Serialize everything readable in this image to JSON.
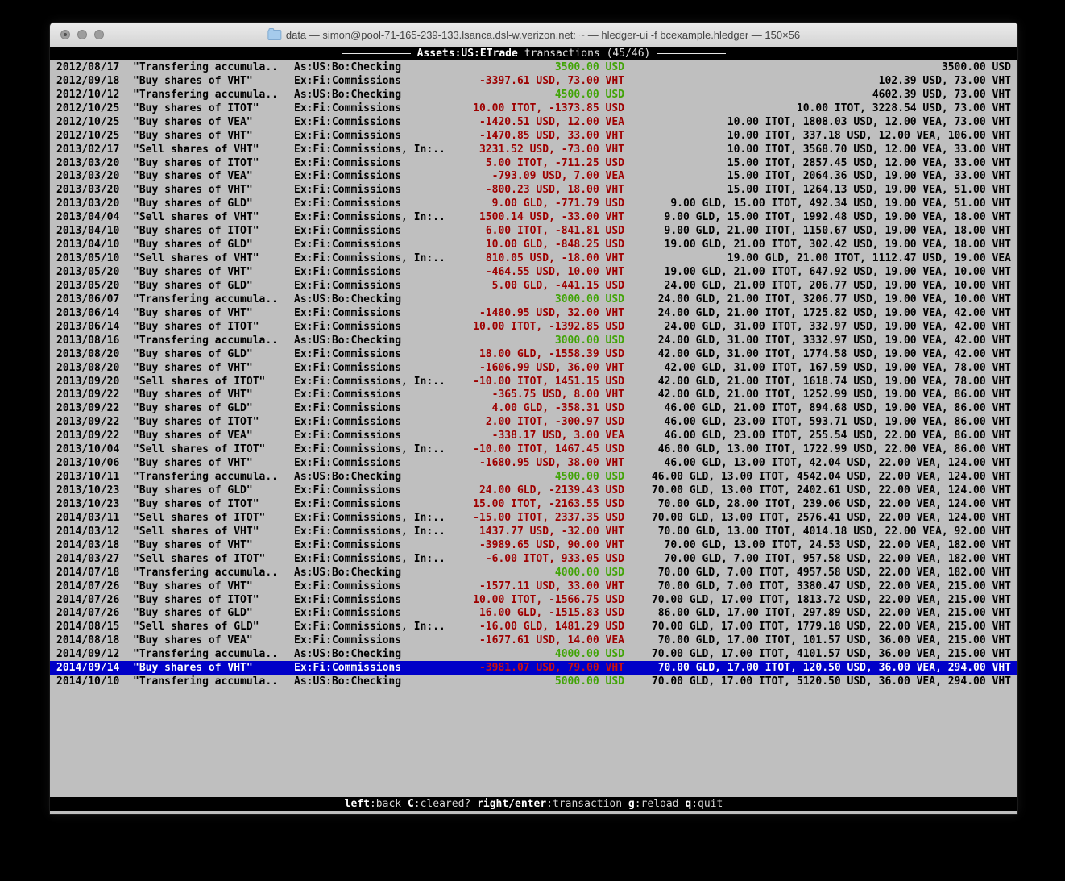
{
  "window": {
    "title": "data — simon@pool-71-165-239-133.lsanca.dsl-w.verizon.net: ~ — hledger-ui -f bcexample.hledger — 150×56"
  },
  "screen_header": {
    "account": "Assets:US:ETrade",
    "rest": "transactions (45/46)"
  },
  "footer": {
    "keys": [
      {
        "key": "left",
        "desc": "back"
      },
      {
        "key": "C",
        "desc": "cleared?"
      },
      {
        "key": "right/enter",
        "desc": "transaction"
      },
      {
        "key": "g",
        "desc": "reload"
      },
      {
        "key": "q",
        "desc": "quit"
      }
    ]
  },
  "colors": {
    "terminal_bg": "#bfbfbf",
    "selection_bg": "#0000c8",
    "negative_amount": "#9d0000",
    "positive_amount": "#42a408",
    "bar_bg": "#000000"
  },
  "register": {
    "selected_index": 44,
    "rows": [
      {
        "date": "2012/08/17",
        "description": "\"Transfering accumula..",
        "account": "As:US:Bo:Checking",
        "change": "3500.00 USD",
        "change_negative": false,
        "balance": "3500.00 USD"
      },
      {
        "date": "2012/09/18",
        "description": "\"Buy shares of VHT\"",
        "account": "Ex:Fi:Commissions",
        "change": "-3397.61 USD, 73.00 VHT",
        "change_negative": true,
        "balance": "102.39 USD, 73.00 VHT"
      },
      {
        "date": "2012/10/12",
        "description": "\"Transfering accumula..",
        "account": "As:US:Bo:Checking",
        "change": "4500.00 USD",
        "change_negative": false,
        "balance": "4602.39 USD, 73.00 VHT"
      },
      {
        "date": "2012/10/25",
        "description": "\"Buy shares of ITOT\"",
        "account": "Ex:Fi:Commissions",
        "change": "10.00 ITOT, -1373.85 USD",
        "change_negative": true,
        "balance": "10.00 ITOT, 3228.54 USD, 73.00 VHT"
      },
      {
        "date": "2012/10/25",
        "description": "\"Buy shares of VEA\"",
        "account": "Ex:Fi:Commissions",
        "change": "-1420.51 USD, 12.00 VEA",
        "change_negative": true,
        "balance": "10.00 ITOT, 1808.03 USD, 12.00 VEA, 73.00 VHT"
      },
      {
        "date": "2012/10/25",
        "description": "\"Buy shares of VHT\"",
        "account": "Ex:Fi:Commissions",
        "change": "-1470.85 USD, 33.00 VHT",
        "change_negative": true,
        "balance": "10.00 ITOT, 337.18 USD, 12.00 VEA, 106.00 VHT"
      },
      {
        "date": "2013/02/17",
        "description": "\"Sell shares of VHT\"",
        "account": "Ex:Fi:Commissions, In:..",
        "change": "3231.52 USD, -73.00 VHT",
        "change_negative": true,
        "balance": "10.00 ITOT, 3568.70 USD, 12.00 VEA, 33.00 VHT"
      },
      {
        "date": "2013/03/20",
        "description": "\"Buy shares of ITOT\"",
        "account": "Ex:Fi:Commissions",
        "change": "5.00 ITOT, -711.25 USD",
        "change_negative": true,
        "balance": "15.00 ITOT, 2857.45 USD, 12.00 VEA, 33.00 VHT"
      },
      {
        "date": "2013/03/20",
        "description": "\"Buy shares of VEA\"",
        "account": "Ex:Fi:Commissions",
        "change": "-793.09 USD, 7.00 VEA",
        "change_negative": true,
        "balance": "15.00 ITOT, 2064.36 USD, 19.00 VEA, 33.00 VHT"
      },
      {
        "date": "2013/03/20",
        "description": "\"Buy shares of VHT\"",
        "account": "Ex:Fi:Commissions",
        "change": "-800.23 USD, 18.00 VHT",
        "change_negative": true,
        "balance": "15.00 ITOT, 1264.13 USD, 19.00 VEA, 51.00 VHT"
      },
      {
        "date": "2013/03/20",
        "description": "\"Buy shares of GLD\"",
        "account": "Ex:Fi:Commissions",
        "change": "9.00 GLD, -771.79 USD",
        "change_negative": true,
        "balance": "9.00 GLD, 15.00 ITOT, 492.34 USD, 19.00 VEA, 51.00 VHT"
      },
      {
        "date": "2013/04/04",
        "description": "\"Sell shares of VHT\"",
        "account": "Ex:Fi:Commissions, In:..",
        "change": "1500.14 USD, -33.00 VHT",
        "change_negative": true,
        "balance": "9.00 GLD, 15.00 ITOT, 1992.48 USD, 19.00 VEA, 18.00 VHT"
      },
      {
        "date": "2013/04/10",
        "description": "\"Buy shares of ITOT\"",
        "account": "Ex:Fi:Commissions",
        "change": "6.00 ITOT, -841.81 USD",
        "change_negative": true,
        "balance": "9.00 GLD, 21.00 ITOT, 1150.67 USD, 19.00 VEA, 18.00 VHT"
      },
      {
        "date": "2013/04/10",
        "description": "\"Buy shares of GLD\"",
        "account": "Ex:Fi:Commissions",
        "change": "10.00 GLD, -848.25 USD",
        "change_negative": true,
        "balance": "19.00 GLD, 21.00 ITOT, 302.42 USD, 19.00 VEA, 18.00 VHT"
      },
      {
        "date": "2013/05/10",
        "description": "\"Sell shares of VHT\"",
        "account": "Ex:Fi:Commissions, In:..",
        "change": "810.05 USD, -18.00 VHT",
        "change_negative": true,
        "balance": "19.00 GLD, 21.00 ITOT, 1112.47 USD, 19.00 VEA"
      },
      {
        "date": "2013/05/20",
        "description": "\"Buy shares of VHT\"",
        "account": "Ex:Fi:Commissions",
        "change": "-464.55 USD, 10.00 VHT",
        "change_negative": true,
        "balance": "19.00 GLD, 21.00 ITOT, 647.92 USD, 19.00 VEA, 10.00 VHT"
      },
      {
        "date": "2013/05/20",
        "description": "\"Buy shares of GLD\"",
        "account": "Ex:Fi:Commissions",
        "change": "5.00 GLD, -441.15 USD",
        "change_negative": true,
        "balance": "24.00 GLD, 21.00 ITOT, 206.77 USD, 19.00 VEA, 10.00 VHT"
      },
      {
        "date": "2013/06/07",
        "description": "\"Transfering accumula..",
        "account": "As:US:Bo:Checking",
        "change": "3000.00 USD",
        "change_negative": false,
        "balance": "24.00 GLD, 21.00 ITOT, 3206.77 USD, 19.00 VEA, 10.00 VHT"
      },
      {
        "date": "2013/06/14",
        "description": "\"Buy shares of VHT\"",
        "account": "Ex:Fi:Commissions",
        "change": "-1480.95 USD, 32.00 VHT",
        "change_negative": true,
        "balance": "24.00 GLD, 21.00 ITOT, 1725.82 USD, 19.00 VEA, 42.00 VHT"
      },
      {
        "date": "2013/06/14",
        "description": "\"Buy shares of ITOT\"",
        "account": "Ex:Fi:Commissions",
        "change": "10.00 ITOT, -1392.85 USD",
        "change_negative": true,
        "balance": "24.00 GLD, 31.00 ITOT, 332.97 USD, 19.00 VEA, 42.00 VHT"
      },
      {
        "date": "2013/08/16",
        "description": "\"Transfering accumula..",
        "account": "As:US:Bo:Checking",
        "change": "3000.00 USD",
        "change_negative": false,
        "balance": "24.00 GLD, 31.00 ITOT, 3332.97 USD, 19.00 VEA, 42.00 VHT"
      },
      {
        "date": "2013/08/20",
        "description": "\"Buy shares of GLD\"",
        "account": "Ex:Fi:Commissions",
        "change": "18.00 GLD, -1558.39 USD",
        "change_negative": true,
        "balance": "42.00 GLD, 31.00 ITOT, 1774.58 USD, 19.00 VEA, 42.00 VHT"
      },
      {
        "date": "2013/08/20",
        "description": "\"Buy shares of VHT\"",
        "account": "Ex:Fi:Commissions",
        "change": "-1606.99 USD, 36.00 VHT",
        "change_negative": true,
        "balance": "42.00 GLD, 31.00 ITOT, 167.59 USD, 19.00 VEA, 78.00 VHT"
      },
      {
        "date": "2013/09/20",
        "description": "\"Sell shares of ITOT\"",
        "account": "Ex:Fi:Commissions, In:..",
        "change": "-10.00 ITOT, 1451.15 USD",
        "change_negative": true,
        "balance": "42.00 GLD, 21.00 ITOT, 1618.74 USD, 19.00 VEA, 78.00 VHT"
      },
      {
        "date": "2013/09/22",
        "description": "\"Buy shares of VHT\"",
        "account": "Ex:Fi:Commissions",
        "change": "-365.75 USD, 8.00 VHT",
        "change_negative": true,
        "balance": "42.00 GLD, 21.00 ITOT, 1252.99 USD, 19.00 VEA, 86.00 VHT"
      },
      {
        "date": "2013/09/22",
        "description": "\"Buy shares of GLD\"",
        "account": "Ex:Fi:Commissions",
        "change": "4.00 GLD, -358.31 USD",
        "change_negative": true,
        "balance": "46.00 GLD, 21.00 ITOT, 894.68 USD, 19.00 VEA, 86.00 VHT"
      },
      {
        "date": "2013/09/22",
        "description": "\"Buy shares of ITOT\"",
        "account": "Ex:Fi:Commissions",
        "change": "2.00 ITOT, -300.97 USD",
        "change_negative": true,
        "balance": "46.00 GLD, 23.00 ITOT, 593.71 USD, 19.00 VEA, 86.00 VHT"
      },
      {
        "date": "2013/09/22",
        "description": "\"Buy shares of VEA\"",
        "account": "Ex:Fi:Commissions",
        "change": "-338.17 USD, 3.00 VEA",
        "change_negative": true,
        "balance": "46.00 GLD, 23.00 ITOT, 255.54 USD, 22.00 VEA, 86.00 VHT"
      },
      {
        "date": "2013/10/04",
        "description": "\"Sell shares of ITOT\"",
        "account": "Ex:Fi:Commissions, In:..",
        "change": "-10.00 ITOT, 1467.45 USD",
        "change_negative": true,
        "balance": "46.00 GLD, 13.00 ITOT, 1722.99 USD, 22.00 VEA, 86.00 VHT"
      },
      {
        "date": "2013/10/06",
        "description": "\"Buy shares of VHT\"",
        "account": "Ex:Fi:Commissions",
        "change": "-1680.95 USD, 38.00 VHT",
        "change_negative": true,
        "balance": "46.00 GLD, 13.00 ITOT, 42.04 USD, 22.00 VEA, 124.00 VHT"
      },
      {
        "date": "2013/10/11",
        "description": "\"Transfering accumula..",
        "account": "As:US:Bo:Checking",
        "change": "4500.00 USD",
        "change_negative": false,
        "balance": "46.00 GLD, 13.00 ITOT, 4542.04 USD, 22.00 VEA, 124.00 VHT"
      },
      {
        "date": "2013/10/23",
        "description": "\"Buy shares of GLD\"",
        "account": "Ex:Fi:Commissions",
        "change": "24.00 GLD, -2139.43 USD",
        "change_negative": true,
        "balance": "70.00 GLD, 13.00 ITOT, 2402.61 USD, 22.00 VEA, 124.00 VHT"
      },
      {
        "date": "2013/10/23",
        "description": "\"Buy shares of ITOT\"",
        "account": "Ex:Fi:Commissions",
        "change": "15.00 ITOT, -2163.55 USD",
        "change_negative": true,
        "balance": "70.00 GLD, 28.00 ITOT, 239.06 USD, 22.00 VEA, 124.00 VHT"
      },
      {
        "date": "2014/03/11",
        "description": "\"Sell shares of ITOT\"",
        "account": "Ex:Fi:Commissions, In:..",
        "change": "-15.00 ITOT, 2337.35 USD",
        "change_negative": true,
        "balance": "70.00 GLD, 13.00 ITOT, 2576.41 USD, 22.00 VEA, 124.00 VHT"
      },
      {
        "date": "2014/03/12",
        "description": "\"Sell shares of VHT\"",
        "account": "Ex:Fi:Commissions, In:..",
        "change": "1437.77 USD, -32.00 VHT",
        "change_negative": true,
        "balance": "70.00 GLD, 13.00 ITOT, 4014.18 USD, 22.00 VEA, 92.00 VHT"
      },
      {
        "date": "2014/03/18",
        "description": "\"Buy shares of VHT\"",
        "account": "Ex:Fi:Commissions",
        "change": "-3989.65 USD, 90.00 VHT",
        "change_negative": true,
        "balance": "70.00 GLD, 13.00 ITOT, 24.53 USD, 22.00 VEA, 182.00 VHT"
      },
      {
        "date": "2014/03/27",
        "description": "\"Sell shares of ITOT\"",
        "account": "Ex:Fi:Commissions, In:..",
        "change": "-6.00 ITOT, 933.05 USD",
        "change_negative": true,
        "balance": "70.00 GLD, 7.00 ITOT, 957.58 USD, 22.00 VEA, 182.00 VHT"
      },
      {
        "date": "2014/07/18",
        "description": "\"Transfering accumula..",
        "account": "As:US:Bo:Checking",
        "change": "4000.00 USD",
        "change_negative": false,
        "balance": "70.00 GLD, 7.00 ITOT, 4957.58 USD, 22.00 VEA, 182.00 VHT"
      },
      {
        "date": "2014/07/26",
        "description": "\"Buy shares of VHT\"",
        "account": "Ex:Fi:Commissions",
        "change": "-1577.11 USD, 33.00 VHT",
        "change_negative": true,
        "balance": "70.00 GLD, 7.00 ITOT, 3380.47 USD, 22.00 VEA, 215.00 VHT"
      },
      {
        "date": "2014/07/26",
        "description": "\"Buy shares of ITOT\"",
        "account": "Ex:Fi:Commissions",
        "change": "10.00 ITOT, -1566.75 USD",
        "change_negative": true,
        "balance": "70.00 GLD, 17.00 ITOT, 1813.72 USD, 22.00 VEA, 215.00 VHT"
      },
      {
        "date": "2014/07/26",
        "description": "\"Buy shares of GLD\"",
        "account": "Ex:Fi:Commissions",
        "change": "16.00 GLD, -1515.83 USD",
        "change_negative": true,
        "balance": "86.00 GLD, 17.00 ITOT, 297.89 USD, 22.00 VEA, 215.00 VHT"
      },
      {
        "date": "2014/08/15",
        "description": "\"Sell shares of GLD\"",
        "account": "Ex:Fi:Commissions, In:..",
        "change": "-16.00 GLD, 1481.29 USD",
        "change_negative": true,
        "balance": "70.00 GLD, 17.00 ITOT, 1779.18 USD, 22.00 VEA, 215.00 VHT"
      },
      {
        "date": "2014/08/18",
        "description": "\"Buy shares of VEA\"",
        "account": "Ex:Fi:Commissions",
        "change": "-1677.61 USD, 14.00 VEA",
        "change_negative": true,
        "balance": "70.00 GLD, 17.00 ITOT, 101.57 USD, 36.00 VEA, 215.00 VHT"
      },
      {
        "date": "2014/09/12",
        "description": "\"Transfering accumula..",
        "account": "As:US:Bo:Checking",
        "change": "4000.00 USD",
        "change_negative": false,
        "balance": "70.00 GLD, 17.00 ITOT, 4101.57 USD, 36.00 VEA, 215.00 VHT"
      },
      {
        "date": "2014/09/14",
        "description": "\"Buy shares of VHT\"",
        "account": "Ex:Fi:Commissions",
        "change": "-3981.07 USD, 79.00 VHT",
        "change_negative": true,
        "balance": "70.00 GLD, 17.00 ITOT, 120.50 USD, 36.00 VEA, 294.00 VHT"
      },
      {
        "date": "2014/10/10",
        "description": "\"Transfering accumula..",
        "account": "As:US:Bo:Checking",
        "change": "5000.00 USD",
        "change_negative": false,
        "balance": "70.00 GLD, 17.00 ITOT, 5120.50 USD, 36.00 VEA, 294.00 VHT"
      }
    ]
  }
}
